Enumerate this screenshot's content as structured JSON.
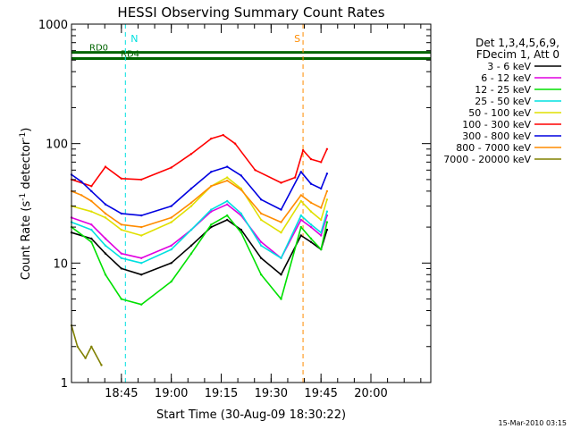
{
  "chart_data": {
    "type": "line",
    "title": "HESSI Observing Summary Count Rates",
    "xlabel": "Start Time (30-Aug-09 18:30:22)",
    "ylabel_main": "Count Rate (s",
    "ylabel_sup1": "-1",
    "ylabel_mid": " detector",
    "ylabel_sup2": "-1",
    "ylabel_end": ")",
    "yscale": "log",
    "ylim": [
      1,
      1000
    ],
    "xlim_min": [
      18.5,
      20.3
    ],
    "y_ticks": [
      {
        "value": 1,
        "label": "1"
      },
      {
        "value": 10,
        "label": "10"
      },
      {
        "value": 100,
        "label": "100"
      },
      {
        "value": 1000,
        "label": "1000"
      }
    ],
    "x_ticks": [
      {
        "value": 18.75,
        "label": "18:45"
      },
      {
        "value": 19.0,
        "label": "19:00"
      },
      {
        "value": 19.25,
        "label": "19:15"
      },
      {
        "value": 19.5,
        "label": "19:30"
      },
      {
        "value": 19.75,
        "label": "19:45"
      },
      {
        "value": 20.0,
        "label": "20:00"
      }
    ],
    "legend_header": [
      "Det 1,3,4,5,6,9,",
      "FDecim 1, Att 0"
    ],
    "series": [
      {
        "name": "3 - 6 keV",
        "color": "#000000",
        "values": [
          [
            18.5,
            18
          ],
          [
            18.6,
            16
          ],
          [
            18.67,
            12
          ],
          [
            18.75,
            9
          ],
          [
            18.85,
            8
          ],
          [
            19.0,
            10
          ],
          [
            19.1,
            14
          ],
          [
            19.2,
            20
          ],
          [
            19.28,
            23
          ],
          [
            19.35,
            19
          ],
          [
            19.45,
            11
          ],
          [
            19.55,
            8
          ],
          [
            19.65,
            17
          ],
          [
            19.7,
            15
          ],
          [
            19.75,
            13
          ],
          [
            19.78,
            19
          ]
        ]
      },
      {
        "name": "6 - 12 keV",
        "color": "#e000e0",
        "values": [
          [
            18.5,
            24
          ],
          [
            18.6,
            21
          ],
          [
            18.67,
            16
          ],
          [
            18.75,
            12
          ],
          [
            18.85,
            11
          ],
          [
            19.0,
            14
          ],
          [
            19.1,
            19
          ],
          [
            19.2,
            27
          ],
          [
            19.28,
            31
          ],
          [
            19.35,
            25
          ],
          [
            19.45,
            15
          ],
          [
            19.55,
            11
          ],
          [
            19.65,
            23
          ],
          [
            19.7,
            20
          ],
          [
            19.75,
            17
          ],
          [
            19.78,
            25
          ]
        ]
      },
      {
        "name": "12 - 25 keV",
        "color": "#00e000",
        "values": [
          [
            18.5,
            20
          ],
          [
            18.6,
            15
          ],
          [
            18.67,
            8
          ],
          [
            18.75,
            5
          ],
          [
            18.85,
            4.5
          ],
          [
            19.0,
            7
          ],
          [
            19.1,
            12
          ],
          [
            19.2,
            21
          ],
          [
            19.28,
            25
          ],
          [
            19.35,
            18
          ],
          [
            19.45,
            8
          ],
          [
            19.55,
            5
          ],
          [
            19.65,
            20
          ],
          [
            19.7,
            16
          ],
          [
            19.75,
            13
          ],
          [
            19.78,
            22
          ]
        ]
      },
      {
        "name": "25 - 50 keV",
        "color": "#00e0e0",
        "values": [
          [
            18.5,
            22
          ],
          [
            18.6,
            19
          ],
          [
            18.67,
            14
          ],
          [
            18.75,
            11
          ],
          [
            18.85,
            10
          ],
          [
            19.0,
            13
          ],
          [
            19.1,
            19
          ],
          [
            19.2,
            28
          ],
          [
            19.28,
            33
          ],
          [
            19.35,
            26
          ],
          [
            19.45,
            14
          ],
          [
            19.55,
            11
          ],
          [
            19.65,
            25
          ],
          [
            19.7,
            21
          ],
          [
            19.75,
            18
          ],
          [
            19.78,
            27
          ]
        ]
      },
      {
        "name": "50 - 100 keV",
        "color": "#e0e000",
        "values": [
          [
            18.5,
            30
          ],
          [
            18.6,
            27
          ],
          [
            18.67,
            24
          ],
          [
            18.75,
            19
          ],
          [
            18.85,
            17
          ],
          [
            19.0,
            22
          ],
          [
            19.1,
            30
          ],
          [
            19.2,
            44
          ],
          [
            19.28,
            52
          ],
          [
            19.35,
            42
          ],
          [
            19.45,
            23
          ],
          [
            19.55,
            18
          ],
          [
            19.65,
            33
          ],
          [
            19.7,
            27
          ],
          [
            19.75,
            23
          ],
          [
            19.78,
            34
          ]
        ]
      },
      {
        "name": "100 - 300 keV",
        "color": "#ff0000",
        "values": [
          [
            18.5,
            50
          ],
          [
            18.6,
            44
          ],
          [
            18.67,
            64
          ],
          [
            18.75,
            51
          ],
          [
            18.85,
            50
          ],
          [
            19.0,
            63
          ],
          [
            19.1,
            82
          ],
          [
            19.2,
            110
          ],
          [
            19.26,
            118
          ],
          [
            19.32,
            100
          ],
          [
            19.42,
            60
          ],
          [
            19.55,
            47
          ],
          [
            19.62,
            52
          ],
          [
            19.66,
            88
          ],
          [
            19.7,
            74
          ],
          [
            19.75,
            70
          ],
          [
            19.78,
            90
          ]
        ]
      },
      {
        "name": "300 - 800 keV",
        "color": "#0000e0",
        "values": [
          [
            18.5,
            55
          ],
          [
            18.55,
            48
          ],
          [
            18.6,
            40
          ],
          [
            18.67,
            31
          ],
          [
            18.75,
            26
          ],
          [
            18.85,
            25
          ],
          [
            19.0,
            30
          ],
          [
            19.1,
            42
          ],
          [
            19.2,
            58
          ],
          [
            19.28,
            64
          ],
          [
            19.35,
            54
          ],
          [
            19.45,
            34
          ],
          [
            19.55,
            28
          ],
          [
            19.65,
            58
          ],
          [
            19.7,
            46
          ],
          [
            19.75,
            42
          ],
          [
            19.78,
            56
          ]
        ]
      },
      {
        "name": "800 - 7000 keV",
        "color": "#ff8c00",
        "values": [
          [
            18.5,
            40
          ],
          [
            18.55,
            37
          ],
          [
            18.6,
            33
          ],
          [
            18.67,
            26
          ],
          [
            18.75,
            21
          ],
          [
            18.85,
            20
          ],
          [
            19.0,
            24
          ],
          [
            19.1,
            32
          ],
          [
            19.2,
            44
          ],
          [
            19.28,
            49
          ],
          [
            19.35,
            41
          ],
          [
            19.45,
            26
          ],
          [
            19.55,
            22
          ],
          [
            19.65,
            37
          ],
          [
            19.7,
            32
          ],
          [
            19.75,
            29
          ],
          [
            19.78,
            40
          ]
        ]
      },
      {
        "name": "7000 - 20000 keV",
        "color": "#808000",
        "values": [
          [
            18.5,
            3
          ],
          [
            18.53,
            2
          ],
          [
            18.57,
            1.6
          ],
          [
            18.6,
            2
          ],
          [
            18.65,
            1.4
          ]
        ]
      }
    ],
    "attenuator_bars": [
      {
        "label": "RD0",
        "start": 18.5,
        "end": 20.3,
        "color": "#006400"
      },
      {
        "label": "RD4",
        "start": 18.5,
        "end": 20.3,
        "color": "#006400"
      }
    ],
    "flag_labels": [
      {
        "label": "N",
        "value": 18.77,
        "color": "#00e0e0"
      },
      {
        "label": "S",
        "value": 19.66,
        "color": "#ff8c00"
      }
    ]
  },
  "footer": {
    "timestamp": "15-Mar-2010 03:15"
  }
}
